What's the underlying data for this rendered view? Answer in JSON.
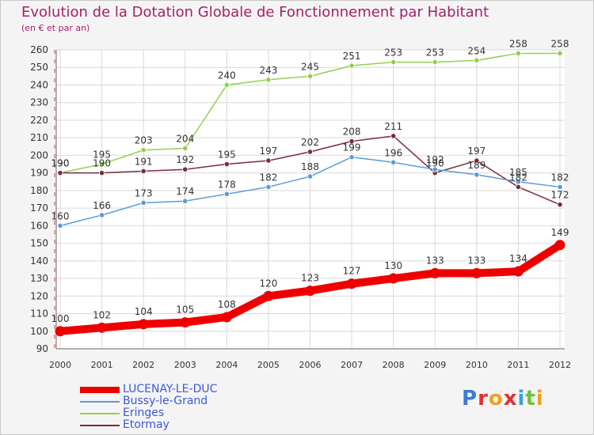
{
  "title": "Evolution de la Dotation Globale de Fonctionnement par Habitant",
  "subtitle": "(en € et par an)",
  "logo_text": "Proxiti",
  "colors": {
    "background": "#f4f4f4",
    "plot_background": "#ffffff",
    "grid": "#d9d9d9",
    "title": "#a3206e",
    "legend_text": "#3a5bd6"
  },
  "chart_data": {
    "type": "line",
    "title": "Evolution de la Dotation Globale de Fonctionnement par Habitant",
    "subtitle": "(en € et par an)",
    "x": [
      "2000",
      "2001",
      "2002",
      "2003",
      "2004",
      "2005",
      "2006",
      "2007",
      "2008",
      "2009",
      "2010",
      "2011",
      "2012"
    ],
    "ylim": [
      90,
      260
    ],
    "yticks": [
      90,
      100,
      110,
      120,
      130,
      140,
      150,
      160,
      170,
      180,
      190,
      200,
      210,
      220,
      230,
      240,
      250,
      260
    ],
    "grid": true,
    "legend_position": "bottom-left",
    "series": [
      {
        "name": "LUCENAY-LE-DUC",
        "color": "#ee0000",
        "thick": true,
        "values": [
          100,
          102,
          104,
          105,
          108,
          120,
          123,
          127,
          130,
          133,
          133,
          134,
          149
        ]
      },
      {
        "name": "Bussy-le-Grand",
        "color": "#5b9bd5",
        "thick": false,
        "values": [
          160,
          166,
          173,
          174,
          178,
          182,
          188,
          199,
          196,
          192,
          189,
          185,
          182
        ]
      },
      {
        "name": "Eringes",
        "color": "#8fd14f",
        "thick": false,
        "values": [
          190,
          195,
          203,
          204,
          240,
          243,
          245,
          251,
          253,
          253,
          254,
          258,
          258
        ]
      },
      {
        "name": "Etormay",
        "color": "#7b2c3a",
        "thick": false,
        "values": [
          190,
          190,
          191,
          192,
          195,
          197,
          202,
          208,
          211,
          190,
          197,
          182,
          172
        ]
      }
    ]
  }
}
